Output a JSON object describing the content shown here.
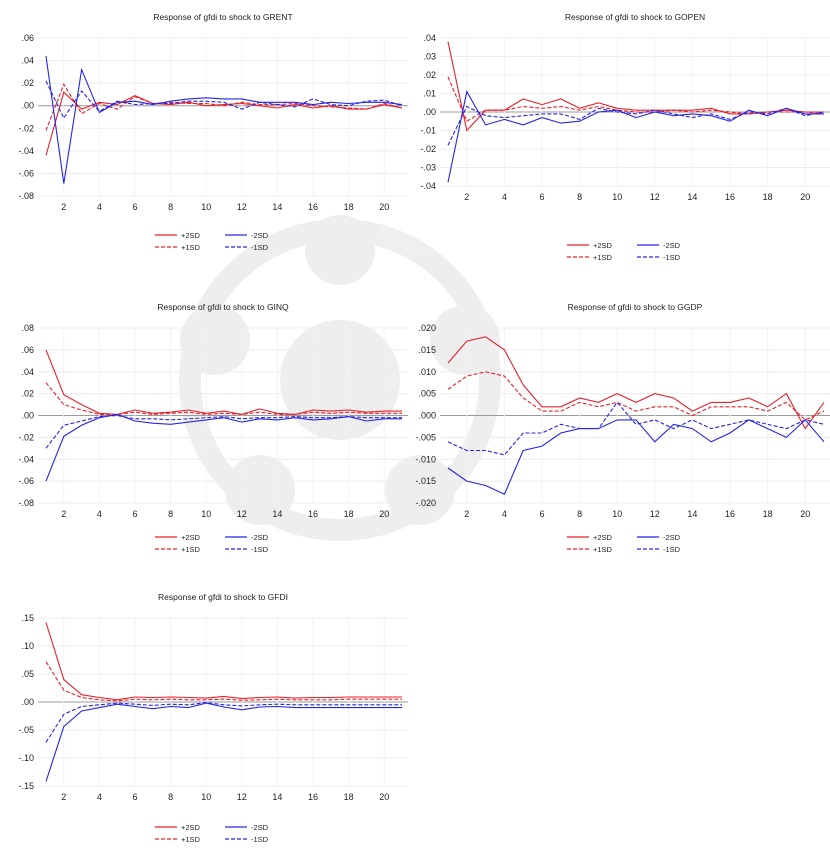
{
  "chart_data": [
    {
      "type": "line",
      "title": "Response of gfdi to shock to GRENT",
      "x": [
        1,
        2,
        3,
        4,
        5,
        6,
        7,
        8,
        9,
        10,
        11,
        12,
        13,
        14,
        15,
        16,
        17,
        18,
        19,
        20,
        21
      ],
      "xticks": [
        2,
        4,
        6,
        8,
        10,
        12,
        14,
        16,
        18,
        20
      ],
      "ylim": [
        -0.08,
        0.06
      ],
      "yticks": [
        -0.08,
        -0.06,
        -0.04,
        -0.02,
        0.0,
        0.02,
        0.04,
        0.06
      ],
      "ytick_labels": [
        "-.08",
        "-.06",
        "-.04",
        "-.02",
        ".00",
        ".02",
        ".04",
        ".06"
      ],
      "grid": true,
      "legend_placement": "bottom",
      "series": [
        {
          "name": "+2SD",
          "color": "#e8202a",
          "dash": false,
          "values": [
            -0.044,
            0.012,
            -0.003,
            0.003,
            0.001,
            0.009,
            0.002,
            0.001,
            0.003,
            0.0,
            0.001,
            0.002,
            0.0,
            -0.002,
            0.001,
            -0.002,
            0.0,
            -0.003,
            -0.003,
            0.001,
            -0.002
          ]
        },
        {
          "name": "+1SD",
          "color": "#e8202a",
          "dash": true,
          "values": [
            -0.022,
            0.019,
            -0.007,
            0.002,
            -0.003,
            0.008,
            0.002,
            0.003,
            0.002,
            0.002,
            0.0,
            0.003,
            0.001,
            0.001,
            0.002,
            0.0,
            -0.001,
            -0.002,
            -0.003,
            0.002,
            -0.002
          ]
        },
        {
          "name": "-2SD",
          "color": "#2424e6",
          "dash": false,
          "values": [
            0.044,
            -0.069,
            0.032,
            -0.006,
            0.003,
            0.004,
            0.001,
            0.004,
            0.006,
            0.007,
            0.006,
            0.006,
            0.003,
            0.003,
            0.003,
            0.001,
            0.003,
            0.002,
            0.003,
            0.003,
            0.001
          ]
        },
        {
          "name": "-1SD",
          "color": "#2424e6",
          "dash": true,
          "values": [
            0.022,
            -0.011,
            0.013,
            -0.005,
            0.004,
            0.001,
            0.002,
            0.002,
            0.004,
            0.004,
            0.003,
            -0.003,
            0.003,
            0.001,
            -0.001,
            0.006,
            0.001,
            0.0,
            0.004,
            0.005,
            0.0
          ]
        }
      ]
    },
    {
      "type": "line",
      "title": "Response of gfdi to shock to GOPEN",
      "x": [
        1,
        2,
        3,
        4,
        5,
        6,
        7,
        8,
        9,
        10,
        11,
        12,
        13,
        14,
        15,
        16,
        17,
        18,
        19,
        20,
        21
      ],
      "xticks": [
        2,
        4,
        6,
        8,
        10,
        12,
        14,
        16,
        18,
        20
      ],
      "ylim": [
        -0.04,
        0.04
      ],
      "yticks": [
        -0.04,
        -0.03,
        -0.02,
        -0.01,
        0.0,
        0.01,
        0.02,
        0.03,
        0.04
      ],
      "ytick_labels": [
        "-.04",
        "-.03",
        "-.02",
        "-.01",
        ".00",
        ".01",
        ".02",
        ".03",
        ".04"
      ],
      "grid": true,
      "legend_placement": "bottom",
      "series": [
        {
          "name": "+2SD",
          "color": "#e8202a",
          "dash": false,
          "values": [
            0.038,
            -0.01,
            0.001,
            0.001,
            0.007,
            0.004,
            0.007,
            0.002,
            0.005,
            0.002,
            0.001,
            0.001,
            0.001,
            0.001,
            0.002,
            -0.001,
            -0.001,
            0.0,
            0.001,
            0.0,
            0.0
          ]
        },
        {
          "name": "+1SD",
          "color": "#e8202a",
          "dash": true,
          "values": [
            0.019,
            -0.005,
            0.001,
            0.001,
            0.003,
            0.002,
            0.003,
            0.001,
            0.003,
            0.001,
            0.0,
            0.0,
            0.001,
            0.0,
            0.001,
            0.0,
            -0.001,
            0.0,
            0.0,
            0.0,
            -0.001
          ]
        },
        {
          "name": "-2SD",
          "color": "#2424e6",
          "dash": false,
          "values": [
            -0.038,
            0.011,
            -0.007,
            -0.004,
            -0.007,
            -0.003,
            -0.006,
            -0.005,
            0.0,
            0.001,
            -0.003,
            0.0,
            -0.002,
            -0.001,
            -0.002,
            -0.005,
            0.001,
            -0.002,
            0.002,
            -0.001,
            -0.001
          ]
        },
        {
          "name": "-1SD",
          "color": "#2424e6",
          "dash": true,
          "values": [
            -0.018,
            0.003,
            -0.002,
            -0.003,
            -0.002,
            -0.001,
            -0.001,
            -0.004,
            0.002,
            0.0,
            -0.001,
            0.001,
            -0.001,
            -0.003,
            -0.001,
            -0.004,
            0.0,
            -0.001,
            0.002,
            -0.002,
            0.0
          ]
        }
      ]
    },
    {
      "type": "line",
      "title": "Response of gfdi to shock to GINQ",
      "x": [
        1,
        2,
        3,
        4,
        5,
        6,
        7,
        8,
        9,
        10,
        11,
        12,
        13,
        14,
        15,
        16,
        17,
        18,
        19,
        20,
        21
      ],
      "xticks": [
        2,
        4,
        6,
        8,
        10,
        12,
        14,
        16,
        18,
        20
      ],
      "ylim": [
        -0.08,
        0.08
      ],
      "yticks": [
        -0.08,
        -0.06,
        -0.04,
        -0.02,
        0.0,
        0.02,
        0.04,
        0.06,
        0.08
      ],
      "ytick_labels": [
        "-.08",
        "-.06",
        "-.04",
        "-.02",
        ".00",
        ".02",
        ".04",
        ".06",
        ".08"
      ],
      "grid": true,
      "legend_placement": "bottom",
      "series": [
        {
          "name": "+2SD",
          "color": "#e8202a",
          "dash": false,
          "values": [
            0.06,
            0.019,
            0.01,
            0.002,
            0.001,
            0.005,
            0.002,
            0.003,
            0.005,
            0.002,
            0.004,
            0.001,
            0.006,
            0.002,
            0.001,
            0.005,
            0.004,
            0.005,
            0.003,
            0.004,
            0.004
          ]
        },
        {
          "name": "+1SD",
          "color": "#e8202a",
          "dash": true,
          "values": [
            0.03,
            0.01,
            0.005,
            0.001,
            0.001,
            0.003,
            0.001,
            0.002,
            0.003,
            0.001,
            0.002,
            0.001,
            0.003,
            0.001,
            0.001,
            0.003,
            0.002,
            0.003,
            0.002,
            0.002,
            0.002
          ]
        },
        {
          "name": "-2SD",
          "color": "#2424e6",
          "dash": false,
          "values": [
            -0.06,
            -0.019,
            -0.009,
            -0.002,
            0.001,
            -0.005,
            -0.007,
            -0.008,
            -0.006,
            -0.004,
            -0.002,
            -0.006,
            -0.003,
            -0.004,
            -0.002,
            -0.004,
            -0.003,
            -0.001,
            -0.005,
            -0.003,
            -0.003
          ]
        },
        {
          "name": "-1SD",
          "color": "#2424e6",
          "dash": true,
          "values": [
            -0.03,
            -0.009,
            -0.005,
            -0.001,
            0.0,
            -0.003,
            -0.003,
            -0.004,
            -0.003,
            -0.002,
            -0.001,
            -0.003,
            -0.002,
            -0.002,
            -0.001,
            -0.002,
            -0.002,
            -0.001,
            -0.002,
            -0.002,
            -0.002
          ]
        }
      ]
    },
    {
      "type": "line",
      "title": "Response of gfdi to shock to GGDP",
      "x": [
        1,
        2,
        3,
        4,
        5,
        6,
        7,
        8,
        9,
        10,
        11,
        12,
        13,
        14,
        15,
        16,
        17,
        18,
        19,
        20,
        21
      ],
      "xticks": [
        2,
        4,
        6,
        8,
        10,
        12,
        14,
        16,
        18,
        20
      ],
      "ylim": [
        -0.02,
        0.02
      ],
      "yticks": [
        -0.02,
        -0.015,
        -0.01,
        -0.005,
        0.0,
        0.005,
        0.01,
        0.015,
        0.02
      ],
      "ytick_labels": [
        "-.020",
        "-.015",
        "-.010",
        "-.005",
        ".000",
        ".005",
        ".010",
        ".015",
        ".020"
      ],
      "grid": true,
      "legend_placement": "bottom",
      "series": [
        {
          "name": "+2SD",
          "color": "#e8202a",
          "dash": false,
          "values": [
            0.012,
            0.017,
            0.018,
            0.015,
            0.007,
            0.002,
            0.002,
            0.004,
            0.003,
            0.005,
            0.003,
            0.005,
            0.004,
            0.001,
            0.003,
            0.003,
            0.004,
            0.002,
            0.005,
            -0.003,
            0.003
          ]
        },
        {
          "name": "+1SD",
          "color": "#e8202a",
          "dash": true,
          "values": [
            0.006,
            0.009,
            0.01,
            0.009,
            0.004,
            0.001,
            0.001,
            0.003,
            0.002,
            0.003,
            0.001,
            0.002,
            0.002,
            0.0,
            0.002,
            0.002,
            0.002,
            0.001,
            0.003,
            -0.001,
            0.001
          ]
        },
        {
          "name": "-2SD",
          "color": "#2424e6",
          "dash": false,
          "values": [
            -0.012,
            -0.015,
            -0.016,
            -0.018,
            -0.008,
            -0.007,
            -0.004,
            -0.003,
            -0.003,
            -0.001,
            -0.001,
            -0.006,
            -0.002,
            -0.003,
            -0.006,
            -0.004,
            -0.001,
            -0.003,
            -0.005,
            -0.001,
            -0.006
          ]
        },
        {
          "name": "-1SD",
          "color": "#2424e6",
          "dash": true,
          "values": [
            -0.006,
            -0.008,
            -0.008,
            -0.009,
            -0.004,
            -0.004,
            -0.002,
            -0.003,
            -0.003,
            0.003,
            -0.002,
            -0.001,
            -0.003,
            -0.001,
            -0.003,
            -0.002,
            -0.001,
            -0.002,
            -0.003,
            -0.001,
            -0.002
          ]
        }
      ]
    },
    {
      "type": "line",
      "title": "Response of gfdi to shock to GFDI",
      "x": [
        1,
        2,
        3,
        4,
        5,
        6,
        7,
        8,
        9,
        10,
        11,
        12,
        13,
        14,
        15,
        16,
        17,
        18,
        19,
        20,
        21
      ],
      "xticks": [
        2,
        4,
        6,
        8,
        10,
        12,
        14,
        16,
        18,
        20
      ],
      "ylim": [
        -0.15,
        0.15
      ],
      "yticks": [
        -0.15,
        -0.1,
        -0.05,
        0.0,
        0.05,
        0.1,
        0.15
      ],
      "ytick_labels": [
        "-.15",
        "-.10",
        "-.05",
        ".00",
        ".05",
        ".10",
        ".15"
      ],
      "grid": true,
      "legend_placement": "bottom",
      "series": [
        {
          "name": "+2SD",
          "color": "#e8202a",
          "dash": false,
          "values": [
            0.142,
            0.04,
            0.013,
            0.008,
            0.004,
            0.009,
            0.008,
            0.009,
            0.008,
            0.007,
            0.01,
            0.006,
            0.008,
            0.009,
            0.007,
            0.008,
            0.008,
            0.009,
            0.009,
            0.009,
            0.009
          ]
        },
        {
          "name": "+1SD",
          "color": "#e8202a",
          "dash": true,
          "values": [
            0.072,
            0.021,
            0.008,
            0.004,
            0.002,
            0.005,
            0.004,
            0.005,
            0.004,
            0.004,
            0.005,
            0.003,
            0.004,
            0.005,
            0.004,
            0.004,
            0.004,
            0.005,
            0.005,
            0.005,
            0.005
          ]
        },
        {
          "name": "-2SD",
          "color": "#2424e6",
          "dash": false,
          "values": [
            -0.142,
            -0.044,
            -0.016,
            -0.01,
            -0.004,
            -0.008,
            -0.012,
            -0.008,
            -0.01,
            -0.002,
            -0.009,
            -0.014,
            -0.009,
            -0.008,
            -0.01,
            -0.01,
            -0.01,
            -0.01,
            -0.01,
            -0.01,
            -0.01
          ]
        },
        {
          "name": "-1SD",
          "color": "#2424e6",
          "dash": true,
          "values": [
            -0.072,
            -0.022,
            -0.008,
            -0.005,
            -0.002,
            -0.004,
            -0.006,
            -0.004,
            -0.005,
            -0.001,
            -0.005,
            -0.007,
            -0.005,
            -0.004,
            -0.005,
            -0.005,
            -0.005,
            -0.005,
            -0.005,
            -0.005,
            -0.005
          ]
        }
      ]
    }
  ]
}
